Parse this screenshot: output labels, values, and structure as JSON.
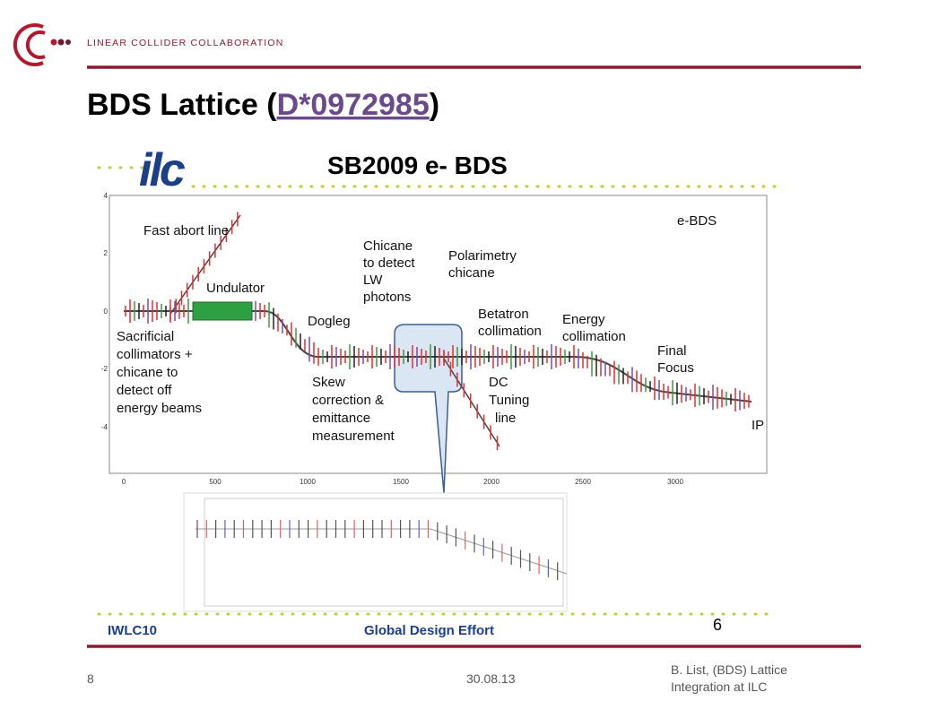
{
  "header": {
    "organization": "LINEAR COLLIDER COLLABORATION",
    "title": "BDS Lattice (",
    "title_link": "D*0972985",
    "title_end": ")"
  },
  "figure": {
    "logo": "ilc",
    "title": "SB2009 e- BDS",
    "yticks": [
      4,
      2,
      0,
      -2,
      -4
    ],
    "xticks": [
      0,
      500,
      1000,
      1500,
      2000,
      2500,
      3000
    ],
    "labels": [
      {
        "lines": [
          "Fast abort line"
        ]
      },
      {
        "lines": [
          "Undulator"
        ]
      },
      {
        "lines": [
          "Sacrificial",
          "collimators +",
          "chicane to",
          "detect off",
          "energy beams"
        ]
      },
      {
        "lines": [
          "Dogleg"
        ]
      },
      {
        "lines": [
          "Chicane",
          "to detect",
          "LW",
          "photons"
        ]
      },
      {
        "lines": [
          "Polarimetry",
          "chicane"
        ]
      },
      {
        "lines": [
          "Betatron",
          "collimation"
        ]
      },
      {
        "lines": [
          "Energy",
          "collimation"
        ]
      },
      {
        "lines": [
          "Final",
          "Focus"
        ]
      },
      {
        "lines": [
          "Skew",
          "correction &",
          "emittance",
          "measurement"
        ]
      },
      {
        "lines": [
          "DC",
          "Tuning",
          "line"
        ]
      },
      {
        "lines": [
          "e-BDS"
        ]
      },
      {
        "lines": [
          "IP"
        ]
      }
    ],
    "footer_left": "IWLC10",
    "footer_center": "Global Design Effort",
    "page": "6"
  },
  "footer": {
    "page": "8",
    "date": "30.08.13",
    "author": [
      "B. List, (BDS) Lattice",
      "Integration at ILC"
    ]
  }
}
